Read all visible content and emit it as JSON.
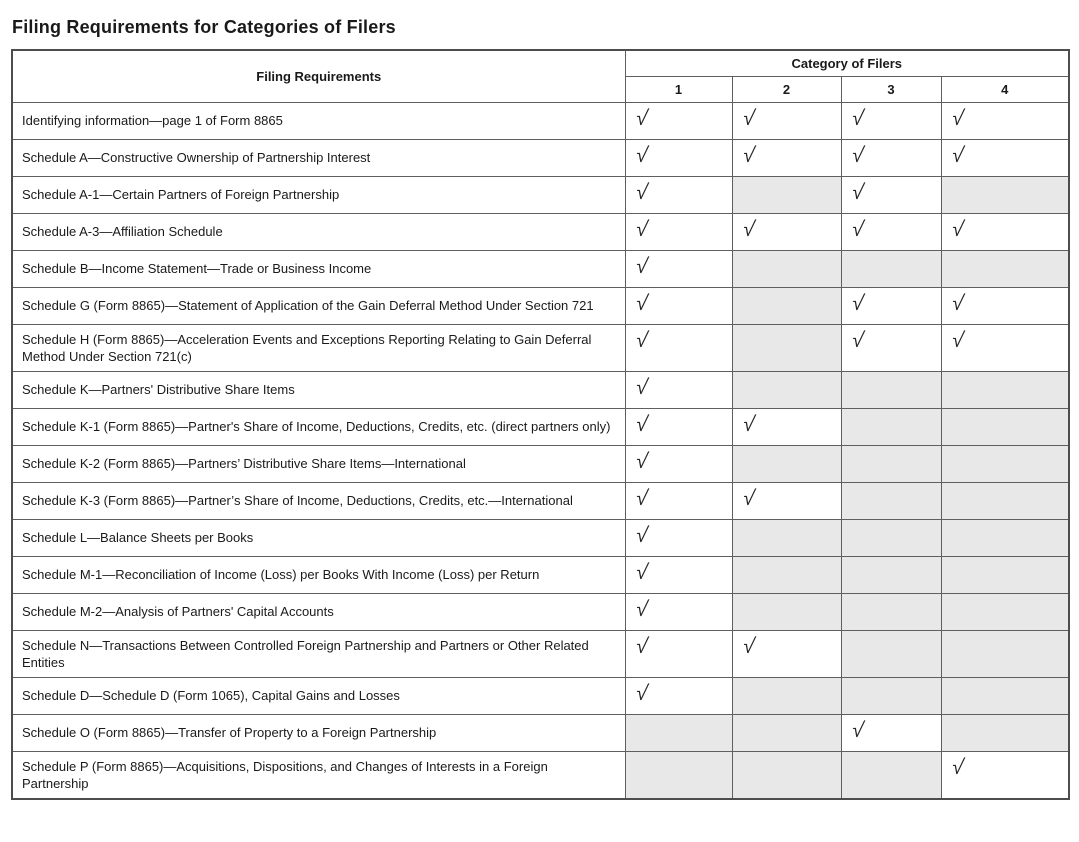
{
  "page_title": "Filing Requirements for Categories of Filers",
  "table": {
    "header": {
      "filing_requirements_label": "Filing Requirements",
      "category_group_label": "Category of Filers",
      "category_columns": [
        "1",
        "2",
        "3",
        "4"
      ]
    },
    "check_glyph": "√",
    "colors": {
      "shaded_cell": "#e8e8e8",
      "border": "#5f5f5f",
      "outer_border": "#4d4d4d",
      "text": "#1a1a1a"
    },
    "rows": [
      {
        "label": "Identifying information—page 1 of Form 8865",
        "cells": [
          "check",
          "check",
          "check",
          "check"
        ]
      },
      {
        "label": "Schedule A—Constructive Ownership of Partnership Interest",
        "cells": [
          "check",
          "check",
          "check",
          "check"
        ]
      },
      {
        "label": "Schedule A-1—Certain Partners of Foreign Partnership",
        "cells": [
          "check",
          "shaded",
          "check",
          "shaded"
        ]
      },
      {
        "label": "Schedule A-3—Affiliation Schedule",
        "cells": [
          "check",
          "check",
          "check",
          "check"
        ]
      },
      {
        "label": "Schedule B—Income Statement—Trade or Business Income",
        "cells": [
          "check",
          "shaded",
          "shaded",
          "shaded"
        ]
      },
      {
        "label": "Schedule G (Form 8865)—Statement of Application of the Gain Deferral Method Under Section 721",
        "cells": [
          "check",
          "shaded",
          "check",
          "check"
        ]
      },
      {
        "label": "Schedule H (Form 8865)—Acceleration Events and Exceptions Reporting Relating to Gain Deferral Method Under Section 721(c)",
        "cells": [
          "check",
          "shaded",
          "check",
          "check"
        ]
      },
      {
        "label": "Schedule K—Partners' Distributive Share Items",
        "cells": [
          "check",
          "shaded",
          "shaded",
          "shaded"
        ]
      },
      {
        "label": "Schedule K-1 (Form 8865)—Partner's Share of Income, Deductions, Credits, etc. (direct partners only)",
        "cells": [
          "check",
          "check",
          "shaded",
          "shaded"
        ]
      },
      {
        "label": "Schedule K-2 (Form 8865)—Partners’ Distributive Share Items—International",
        "cells": [
          "check",
          "shaded",
          "shaded",
          "shaded"
        ]
      },
      {
        "label": "Schedule K-3 (Form 8865)—Partner’s Share of Income, Deductions, Credits, etc.—International",
        "cells": [
          "check",
          "check",
          "shaded",
          "shaded"
        ]
      },
      {
        "label": "Schedule L—Balance Sheets per Books",
        "cells": [
          "check",
          "shaded",
          "shaded",
          "shaded"
        ]
      },
      {
        "label": "Schedule M-1—Reconciliation of Income (Loss) per Books With Income (Loss) per Return",
        "cells": [
          "check",
          "shaded",
          "shaded",
          "shaded"
        ]
      },
      {
        "label": "Schedule M-2—Analysis of Partners' Capital Accounts",
        "cells": [
          "check",
          "shaded",
          "shaded",
          "shaded"
        ]
      },
      {
        "label": "Schedule N—Transactions Between Controlled Foreign Partnership and Partners or Other Related Entities",
        "cells": [
          "check",
          "check",
          "shaded",
          "shaded"
        ]
      },
      {
        "label": "Schedule D—Schedule D (Form 1065), Capital Gains and Losses",
        "cells": [
          "check",
          "shaded",
          "shaded",
          "shaded"
        ]
      },
      {
        "label": "Schedule O (Form 8865)—Transfer of Property to a Foreign Partnership",
        "cells": [
          "shaded",
          "shaded",
          "check",
          "shaded"
        ]
      },
      {
        "label": "Schedule P (Form 8865)—Acquisitions, Dispositions, and Changes of Interests in a Foreign Partnership",
        "cells": [
          "shaded",
          "shaded",
          "shaded",
          "check"
        ]
      }
    ]
  }
}
